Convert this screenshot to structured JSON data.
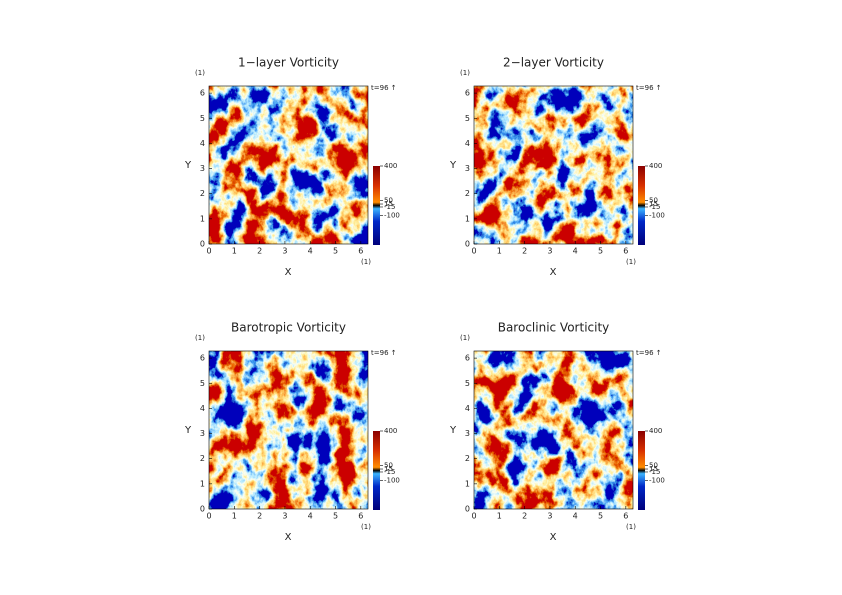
{
  "chart_data": [
    {
      "type": "heatmap",
      "title": "1−layer Vorticity",
      "xlabel": "X",
      "ylabel": "Y",
      "xunit": "(1)",
      "yunit": "(1)",
      "annotation": "t=96 ↑",
      "xlim": [
        0,
        6.283
      ],
      "ylim": [
        0,
        6.283
      ],
      "xticks": [
        0,
        1,
        2,
        3,
        4,
        5,
        6
      ],
      "yticks": [
        0,
        1,
        2,
        3,
        4,
        5,
        6
      ],
      "colorbar": {
        "clim": [
          -400,
          400
        ],
        "ticks": [
          400,
          50,
          15,
          -15,
          -100
        ]
      }
    },
    {
      "type": "heatmap",
      "title": "2−layer Vorticity",
      "xlabel": "X",
      "ylabel": "Y",
      "xunit": "(1)",
      "yunit": "(1)",
      "annotation": "t=96 ↑",
      "xlim": [
        0,
        6.283
      ],
      "ylim": [
        0,
        6.283
      ],
      "xticks": [
        0,
        1,
        2,
        3,
        4,
        5,
        6
      ],
      "yticks": [
        0,
        1,
        2,
        3,
        4,
        5,
        6
      ],
      "colorbar": {
        "clim": [
          -400,
          400
        ],
        "ticks": [
          400,
          50,
          15,
          -15,
          -100
        ]
      }
    },
    {
      "type": "heatmap",
      "title": "Barotropic Vorticity",
      "xlabel": "X",
      "ylabel": "Y",
      "xunit": "(1)",
      "yunit": "(1)",
      "annotation": "t=96 ↑",
      "xlim": [
        0,
        6.283
      ],
      "ylim": [
        0,
        6.283
      ],
      "xticks": [
        0,
        1,
        2,
        3,
        4,
        5,
        6
      ],
      "yticks": [
        0,
        1,
        2,
        3,
        4,
        5,
        6
      ],
      "colorbar": {
        "clim": [
          -400,
          400
        ],
        "ticks": [
          400,
          50,
          15,
          -15,
          -100
        ]
      }
    },
    {
      "type": "heatmap",
      "title": "Baroclinic Vorticity",
      "xlabel": "X",
      "ylabel": "Y",
      "xunit": "(1)",
      "yunit": "(1)",
      "annotation": "t=96 ↑",
      "xlim": [
        0,
        6.283
      ],
      "ylim": [
        0,
        6.283
      ],
      "xticks": [
        0,
        1,
        2,
        3,
        4,
        5,
        6
      ],
      "yticks": [
        0,
        1,
        2,
        3,
        4,
        5,
        6
      ],
      "colorbar": {
        "clim": [
          -400,
          400
        ],
        "ticks": [
          400,
          50,
          15,
          -15,
          -100
        ]
      }
    }
  ]
}
